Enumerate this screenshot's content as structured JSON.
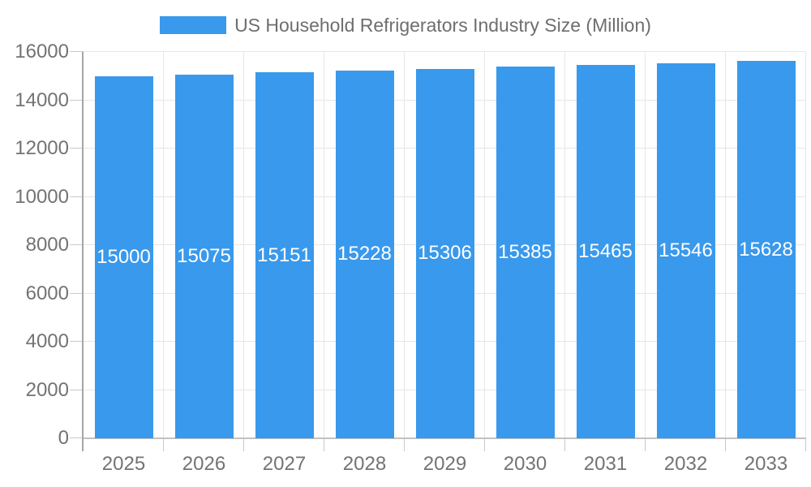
{
  "chart_data": {
    "type": "bar",
    "title": "US Household Refrigerators Industry Size (Million)",
    "categories": [
      "2025",
      "2026",
      "2027",
      "2028",
      "2029",
      "2030",
      "2031",
      "2032",
      "2033"
    ],
    "series": [
      {
        "name": "US Household Refrigerators Industry Size (Million)",
        "values": [
          15000,
          15075,
          15151,
          15228,
          15306,
          15385,
          15465,
          15546,
          15628
        ]
      }
    ],
    "xlabel": "",
    "ylabel": "",
    "ylim": [
      0,
      16000
    ],
    "ytick_step": 2000,
    "ytick_labels": [
      "0",
      "2000",
      "4000",
      "6000",
      "8000",
      "10000",
      "12000",
      "14000",
      "16000"
    ],
    "grid": true,
    "legend_position": "top-center",
    "value_label_position": "inside-center",
    "colors": {
      "bar": "#3999EC",
      "grid_line": "#E6E6E6",
      "tick_mark": "#C9C9C9",
      "x_axis_line": "#C2C2C2",
      "y_axis_line": "#A6A6A6",
      "tick_text": "#737373",
      "legend_text": "#6E6E6E",
      "value_label_text": "#FFFFFF",
      "background": "#FFFFFF"
    }
  }
}
